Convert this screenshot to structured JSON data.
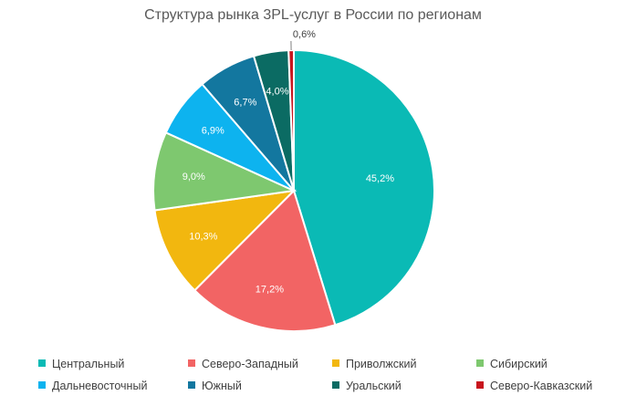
{
  "chart_data": {
    "type": "pie",
    "title": "Структура рынка 3PL-услуг в России по регионам",
    "slices": [
      {
        "label": "Центральный",
        "value": 45.2,
        "value_text": "45,2%",
        "color": "#0abab5"
      },
      {
        "label": "Северо-Западный",
        "value": 17.2,
        "value_text": "17,2%",
        "color": "#f26464"
      },
      {
        "label": "Приволжский",
        "value": 10.3,
        "value_text": "10,3%",
        "color": "#f2b70f"
      },
      {
        "label": "Сибирский",
        "value": 9.0,
        "value_text": "9,0%",
        "color": "#7ec86f"
      },
      {
        "label": "Дальневосточный",
        "value": 6.9,
        "value_text": "6,9%",
        "color": "#0db3ef"
      },
      {
        "label": "Южный",
        "value": 6.7,
        "value_text": "6,7%",
        "color": "#13779f"
      },
      {
        "label": "Уральский",
        "value": 4.0,
        "value_text": "4,0%",
        "color": "#0b6b63"
      },
      {
        "label": "Северо-Кавказский",
        "value": 0.6,
        "value_text": "0,6%",
        "color": "#c8151d"
      }
    ],
    "label_color_inside": "#ffffff",
    "label_color_outside": "#404040",
    "legend_position": "bottom"
  }
}
